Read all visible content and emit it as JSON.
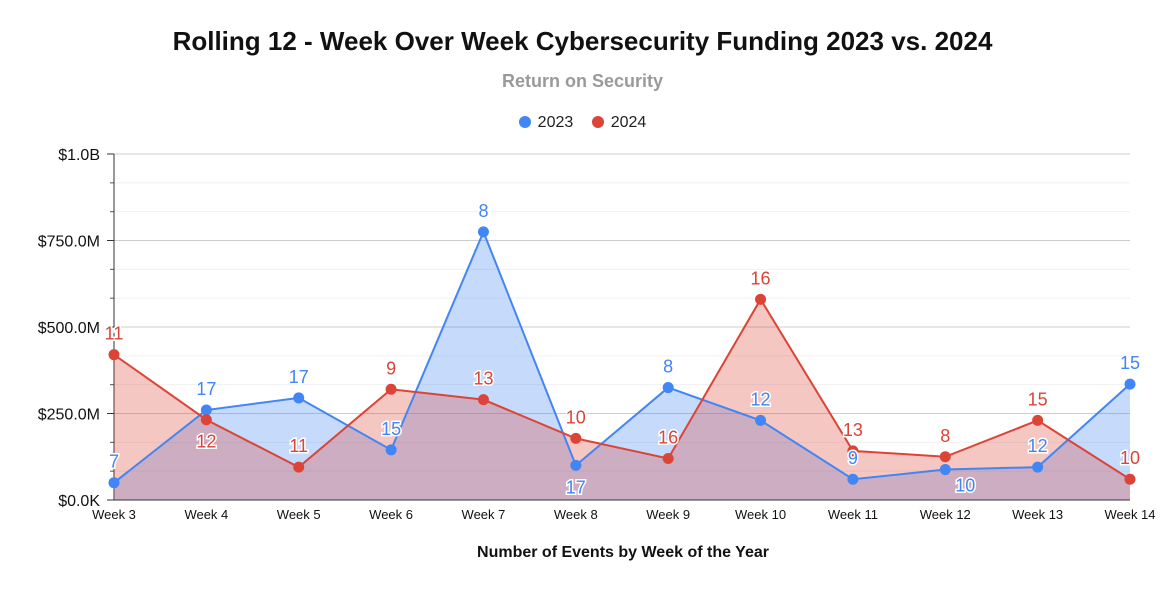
{
  "chart_data": {
    "type": "area",
    "title": "Rolling 12 - Week Over Week Cybersecurity Funding 2023 vs. 2024",
    "subtitle": "Return on Security",
    "xlabel": "Number of Events by Week of the Year",
    "ylabel": "",
    "ylim": [
      0,
      1000
    ],
    "y_unit": "$M",
    "y_ticks": [
      0,
      250,
      500,
      750,
      1000
    ],
    "y_tick_labels": [
      "$0.0K",
      "$250.0M",
      "$500.0M",
      "$750.0M",
      "$1.0B"
    ],
    "grid": true,
    "legend_position": "top",
    "categories": [
      "Week 3",
      "Week 4",
      "Week 5",
      "Week 6",
      "Week 7",
      "Week 8",
      "Week 9",
      "Week 10",
      "Week 11",
      "Week 12",
      "Week 13",
      "Week 14"
    ],
    "series": [
      {
        "name": "2023",
        "color": "#4285F4",
        "fill": "rgba(66,133,244,0.30)",
        "values": [
          50,
          260,
          295,
          145,
          775,
          100,
          325,
          230,
          60,
          88,
          95,
          335
        ],
        "labels": [
          "7",
          "17",
          "17",
          "15",
          "8",
          "17",
          "8",
          "12",
          "9",
          "10",
          "12",
          "15"
        ],
        "label_pos": [
          "above",
          "above",
          "above",
          "above",
          "above",
          "below",
          "above",
          "above",
          "above",
          "right",
          "above",
          "above"
        ]
      },
      {
        "name": "2024",
        "color": "#DB4437",
        "fill": "rgba(219,68,55,0.30)",
        "values": [
          420,
          232,
          95,
          320,
          290,
          178,
          120,
          580,
          142,
          125,
          230,
          60
        ],
        "labels": [
          "11",
          "12",
          "11",
          "9",
          "13",
          "10",
          "16",
          "16",
          "13",
          "8",
          "15",
          "10"
        ],
        "label_pos": [
          "above",
          "below",
          "above",
          "above",
          "above",
          "above",
          "above",
          "above",
          "above",
          "above",
          "above",
          "above"
        ]
      }
    ]
  }
}
